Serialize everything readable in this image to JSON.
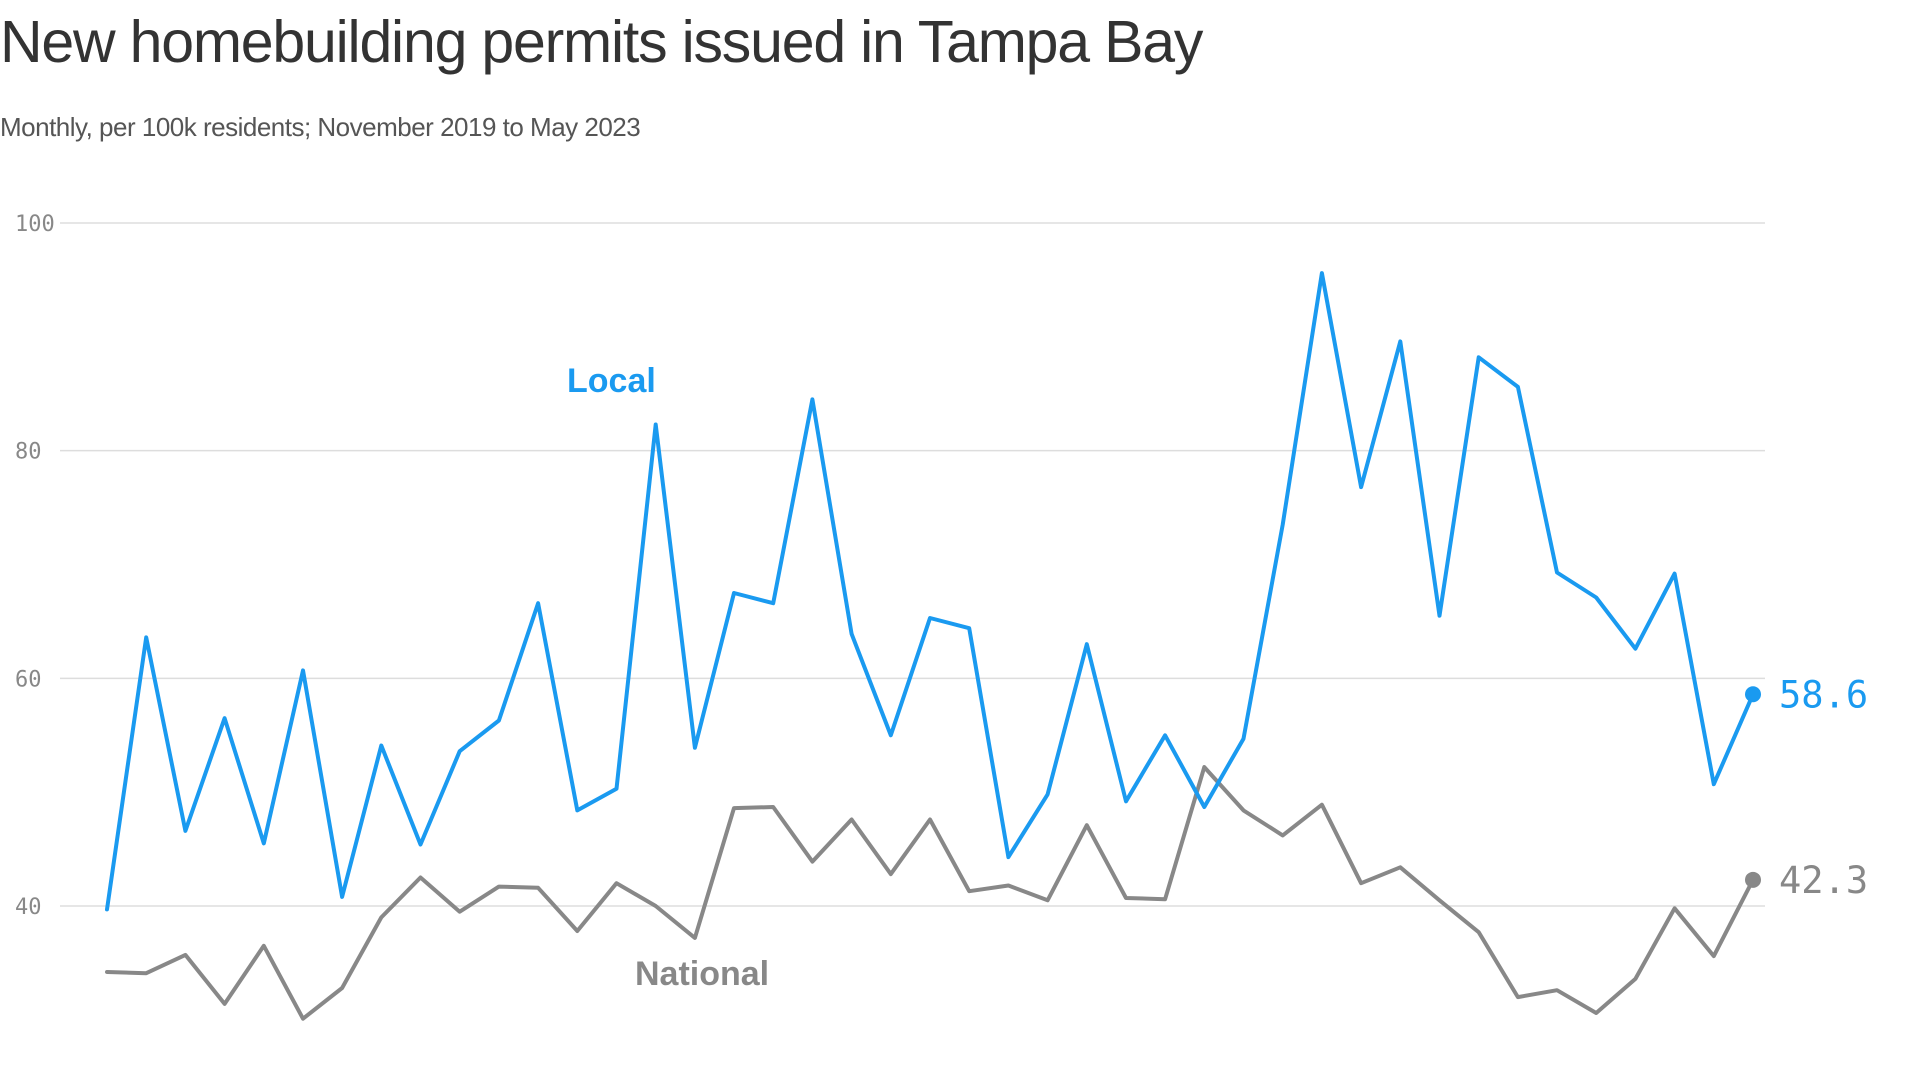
{
  "chart_data": {
    "type": "line",
    "title": "New homebuilding permits issued in Tampa Bay",
    "subtitle": "Monthly, per 100k residents; November 2019 to May 2023",
    "xlabel": "",
    "ylabel": "",
    "ylim": [
      25,
      100
    ],
    "yticks": [
      "100",
      "80",
      "60",
      "40"
    ],
    "grid": true,
    "colors": {
      "local": "#1a9af0",
      "national": "#888888"
    },
    "series": [
      {
        "name": "Local",
        "color": "#1a9af0",
        "end_label": "58.6",
        "values": [
          39.7,
          63.6,
          46.6,
          56.5,
          45.5,
          60.7,
          40.8,
          54.1,
          45.4,
          53.6,
          56.3,
          66.6,
          48.4,
          50.3,
          82.3,
          53.9,
          67.5,
          66.6,
          84.5,
          63.9,
          55.0,
          65.3,
          64.4,
          44.3,
          49.8,
          63.0,
          49.2,
          55.0,
          48.7,
          54.7,
          73.5,
          95.6,
          76.8,
          89.6,
          65.5,
          88.2,
          85.6,
          69.3,
          67.1,
          62.6,
          69.2,
          50.7,
          58.6
        ]
      },
      {
        "name": "National",
        "color": "#888888",
        "end_label": "42.3",
        "values": [
          34.2,
          34.1,
          35.7,
          31.4,
          36.5,
          30.1,
          32.8,
          39.0,
          42.5,
          39.5,
          41.7,
          41.6,
          37.8,
          42.0,
          40.0,
          37.2,
          48.6,
          48.7,
          43.9,
          47.6,
          42.8,
          47.6,
          41.3,
          41.8,
          40.5,
          47.1,
          40.7,
          40.6,
          52.2,
          48.4,
          46.2,
          48.9,
          42.0,
          43.4,
          40.5,
          37.7,
          32.0,
          32.6,
          30.6,
          33.6,
          39.8,
          35.6,
          42.3
        ]
      }
    ]
  }
}
